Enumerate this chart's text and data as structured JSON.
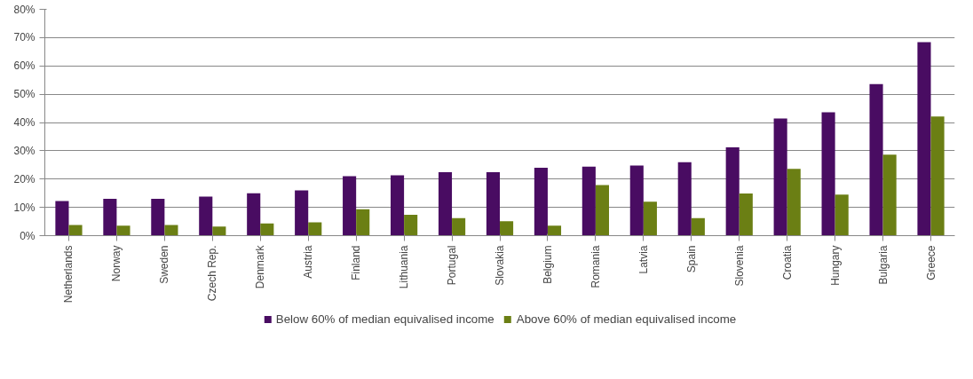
{
  "chart_data": {
    "type": "bar",
    "categories": [
      "Netherlands",
      "Norway",
      "Sweden",
      "Czech Rep.",
      "Denmark",
      "Austria",
      "Finland",
      "Lithuania",
      "Portugal",
      "Slovakia",
      "Belgium",
      "Romania",
      "Latvia",
      "Spain",
      "Slovenia",
      "Croatia",
      "Hungary",
      "Bulgaria",
      "Greece"
    ],
    "series": [
      {
        "name": "Below 60% of median equivalised income",
        "color": "#490c62",
        "values": [
          12.2,
          13,
          13,
          13.8,
          15,
          16,
          21,
          21.3,
          22.4,
          22.4,
          24,
          24.4,
          24.8,
          26,
          31.2,
          41.4,
          43.6,
          53.6,
          68.4
        ]
      },
      {
        "name": "Above 60% of median equivalised income",
        "color": "#6b7f14",
        "values": [
          3.8,
          3.5,
          3.8,
          3.2,
          4.3,
          4.7,
          9.3,
          7.4,
          6.2,
          5.1,
          3.5,
          17.9,
          12,
          6.2,
          14.9,
          23.6,
          14.5,
          28.6,
          42.1
        ]
      }
    ],
    "ylim": [
      0,
      80
    ],
    "yticks": [
      {
        "value": 0,
        "label": "0%"
      },
      {
        "value": 10,
        "label": "10%"
      },
      {
        "value": 20,
        "label": "20%"
      },
      {
        "value": 30,
        "label": "30%"
      },
      {
        "value": 40,
        "label": "40%"
      },
      {
        "value": 50,
        "label": "50%"
      },
      {
        "value": 60,
        "label": "60%"
      },
      {
        "value": 70,
        "label": "70%"
      },
      {
        "value": 80,
        "label": "80%"
      }
    ],
    "grid": "y",
    "legend": "bottom"
  }
}
